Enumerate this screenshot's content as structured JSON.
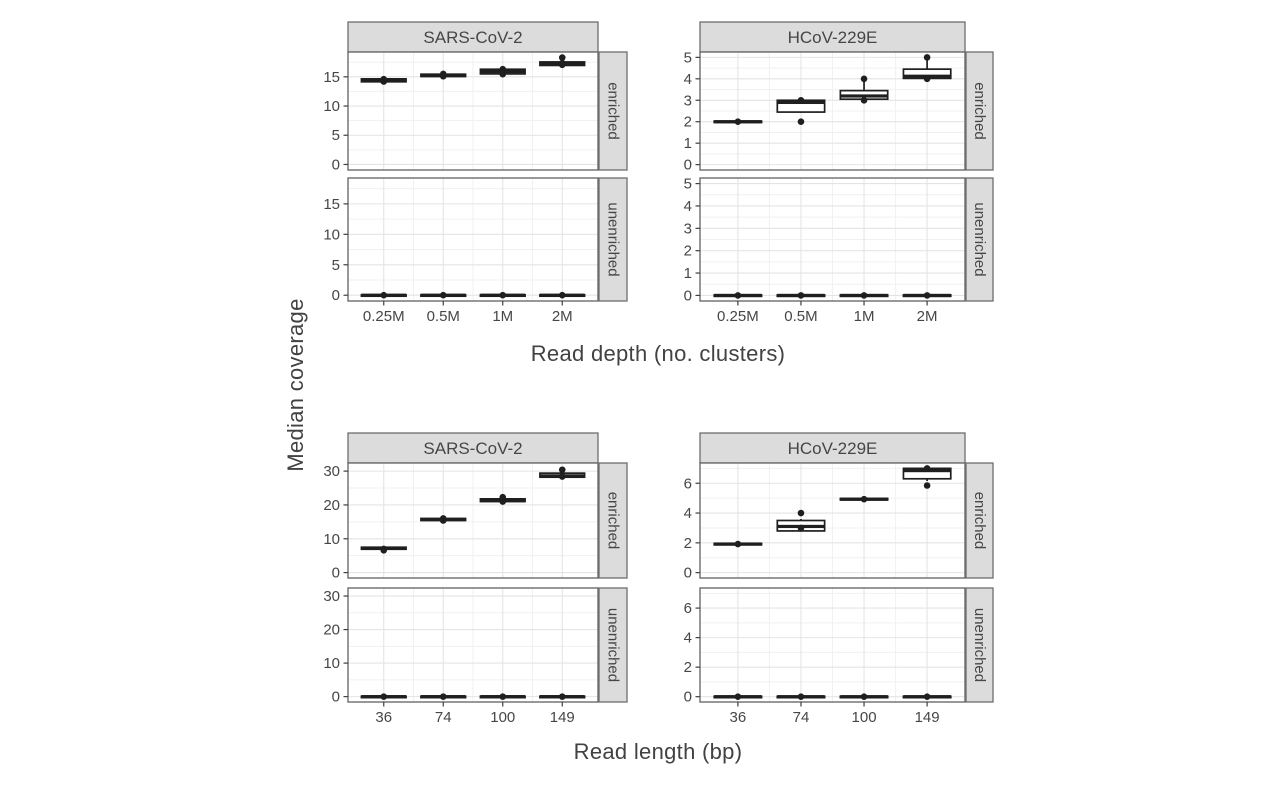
{
  "chart_meta": {
    "ylabel": "Median coverage"
  },
  "colors": {
    "strip_fill": "#dcdcdc",
    "strip_border": "#6d6d6d",
    "panel_border": "#6d6d6d",
    "grid_major": "#e4e4e4",
    "grid_minor": "#f1f1f1",
    "box_stroke": "#1f1f1f",
    "box_fill": "#ffffff",
    "point": "#1f1f1f",
    "tick": "#3f3f3f",
    "text": "#464646"
  },
  "chart_data": [
    {
      "type": "boxplot",
      "xlabel": "Read depth (no. clusters)",
      "ylabel": "Median coverage",
      "categories": [
        "0.25M",
        "0.5M",
        "1M",
        "2M"
      ],
      "row_facets": [
        "enriched",
        "unenriched"
      ],
      "col_facets": [
        {
          "label": "SARS-CoV-2",
          "ylim": [
            -0.95,
            19.25
          ],
          "yticks": [
            0,
            5,
            10,
            15
          ],
          "yminor": [
            2.5,
            7.5,
            12.5,
            17.5
          ],
          "rows": {
            "enriched": [
              {
                "whislo": 13.9,
                "q1": 14.15,
                "med": 14.4,
                "q3": 14.65,
                "whishi": 14.95,
                "points": [
                  14.2,
                  14.45,
                  14.6
                ]
              },
              {
                "whislo": 14.9,
                "q1": 15.05,
                "med": 15.25,
                "q3": 15.45,
                "whishi": 15.6,
                "points": [
                  15.1,
                  15.3,
                  15.5
                ]
              },
              {
                "whislo": 15.2,
                "q1": 15.5,
                "med": 15.9,
                "q3": 16.3,
                "whishi": 16.5,
                "points": [
                  15.45,
                  15.95,
                  16.3
                ]
              },
              {
                "whislo": 16.8,
                "q1": 16.95,
                "med": 17.2,
                "q3": 17.55,
                "whishi": 17.7,
                "points": [
                  17.05,
                  17.35,
                  18.3
                ]
              }
            ],
            "unenriched": [
              {
                "whislo": -0.12,
                "q1": -0.07,
                "med": 0,
                "q3": 0.07,
                "whishi": 0.12,
                "points": [
                  0
                ]
              },
              {
                "whislo": -0.12,
                "q1": -0.07,
                "med": 0,
                "q3": 0.07,
                "whishi": 0.12,
                "points": [
                  0
                ]
              },
              {
                "whislo": -0.12,
                "q1": -0.07,
                "med": 0,
                "q3": 0.07,
                "whishi": 0.12,
                "points": [
                  0
                ]
              },
              {
                "whislo": -0.12,
                "q1": -0.07,
                "med": 0,
                "q3": 0.07,
                "whishi": 0.12,
                "points": [
                  0
                ]
              }
            ]
          }
        },
        {
          "label": "HCoV-229E",
          "ylim": [
            -0.25,
            5.25
          ],
          "yticks": [
            0,
            1,
            2,
            3,
            4,
            5
          ],
          "yminor": [
            0.5,
            1.5,
            2.5,
            3.5,
            4.5
          ],
          "rows": {
            "enriched": [
              {
                "whislo": 1.95,
                "q1": 1.97,
                "med": 2.0,
                "q3": 2.03,
                "whishi": 2.05,
                "points": [
                  2.0
                ]
              },
              {
                "whislo": 2.42,
                "q1": 2.45,
                "med": 2.9,
                "q3": 3.0,
                "whishi": 3.03,
                "points": [
                  3.0,
                  2.0
                ]
              },
              {
                "whislo": 3.0,
                "q1": 3.05,
                "med": 3.2,
                "q3": 3.45,
                "whishi": 4.0,
                "points": [
                  4.0,
                  3.0
                ]
              },
              {
                "whislo": 4.0,
                "q1": 4.02,
                "med": 4.12,
                "q3": 4.45,
                "whishi": 5.0,
                "points": [
                  5.0,
                  4.0
                ]
              }
            ],
            "unenriched": [
              {
                "whislo": -0.035,
                "q1": -0.02,
                "med": 0,
                "q3": 0.02,
                "whishi": 0.035,
                "points": [
                  0
                ]
              },
              {
                "whislo": -0.035,
                "q1": -0.02,
                "med": 0,
                "q3": 0.02,
                "whishi": 0.035,
                "points": [
                  0
                ]
              },
              {
                "whislo": -0.035,
                "q1": -0.02,
                "med": 0,
                "q3": 0.02,
                "whishi": 0.035,
                "points": [
                  0
                ]
              },
              {
                "whislo": -0.035,
                "q1": -0.02,
                "med": 0,
                "q3": 0.02,
                "whishi": 0.035,
                "points": [
                  0
                ]
              }
            ]
          }
        }
      ]
    },
    {
      "type": "boxplot",
      "xlabel": "Read length (bp)",
      "ylabel": "Median coverage",
      "categories": [
        "36",
        "74",
        "100",
        "149"
      ],
      "row_facets": [
        "enriched",
        "unenriched"
      ],
      "col_facets": [
        {
          "label": "SARS-CoV-2",
          "ylim": [
            -1.6,
            32.4
          ],
          "yticks": [
            0,
            10,
            20,
            30
          ],
          "yminor": [
            5,
            15,
            25
          ],
          "rows": {
            "enriched": [
              {
                "whislo": 6.6,
                "q1": 6.9,
                "med": 7.2,
                "q3": 7.5,
                "whishi": 7.7,
                "points": [
                  7.0,
                  6.6
                ]
              },
              {
                "whislo": 15.1,
                "q1": 15.4,
                "med": 15.7,
                "q3": 16.0,
                "whishi": 16.2,
                "points": [
                  15.4,
                  16.0
                ]
              },
              {
                "whislo": 20.7,
                "q1": 21.0,
                "med": 21.3,
                "q3": 21.8,
                "whishi": 22.0,
                "points": [
                  21.0,
                  22.3
                ]
              },
              {
                "whislo": 27.9,
                "q1": 28.2,
                "med": 28.6,
                "q3": 29.4,
                "whishi": 29.6,
                "points": [
                  28.4,
                  30.4
                ]
              }
            ],
            "unenriched": [
              {
                "whislo": -0.22,
                "q1": -0.12,
                "med": 0,
                "q3": 0.12,
                "whishi": 0.22,
                "points": [
                  0
                ]
              },
              {
                "whislo": -0.22,
                "q1": -0.12,
                "med": 0,
                "q3": 0.12,
                "whishi": 0.22,
                "points": [
                  0
                ]
              },
              {
                "whislo": -0.22,
                "q1": -0.12,
                "med": 0,
                "q3": 0.12,
                "whishi": 0.22,
                "points": [
                  0
                ]
              },
              {
                "whislo": -0.22,
                "q1": -0.12,
                "med": 0,
                "q3": 0.12,
                "whishi": 0.22,
                "points": [
                  0
                ]
              }
            ]
          }
        },
        {
          "label": "HCoV-229E",
          "ylim": [
            -0.36,
            7.36
          ],
          "yticks": [
            0,
            2,
            4,
            6
          ],
          "yminor": [
            1,
            3,
            5,
            7
          ],
          "rows": {
            "enriched": [
              {
                "whislo": 1.85,
                "q1": 1.88,
                "med": 1.92,
                "q3": 1.96,
                "whishi": 2.0,
                "points": [
                  1.92
                ]
              },
              {
                "whislo": 2.75,
                "q1": 2.8,
                "med": 3.1,
                "q3": 3.5,
                "whishi": 3.6,
                "points": [
                  4.0,
                  3.0
                ]
              },
              {
                "whislo": 4.85,
                "q1": 4.88,
                "med": 4.93,
                "q3": 4.98,
                "whishi": 5.02,
                "points": [
                  4.93
                ]
              },
              {
                "whislo": 6.15,
                "q1": 6.3,
                "med": 6.85,
                "q3": 7.0,
                "whishi": 7.05,
                "points": [
                  7.0,
                  5.85
                ]
              }
            ],
            "unenriched": [
              {
                "whislo": -0.05,
                "q1": -0.028,
                "med": 0,
                "q3": 0.028,
                "whishi": 0.05,
                "points": [
                  0
                ]
              },
              {
                "whislo": -0.05,
                "q1": -0.028,
                "med": 0,
                "q3": 0.028,
                "whishi": 0.05,
                "points": [
                  0
                ]
              },
              {
                "whislo": -0.05,
                "q1": -0.028,
                "med": 0,
                "q3": 0.028,
                "whishi": 0.05,
                "points": [
                  0
                ]
              },
              {
                "whislo": -0.05,
                "q1": -0.028,
                "med": 0,
                "q3": 0.028,
                "whishi": 0.05,
                "points": [
                  0
                ]
              }
            ]
          }
        }
      ]
    }
  ]
}
